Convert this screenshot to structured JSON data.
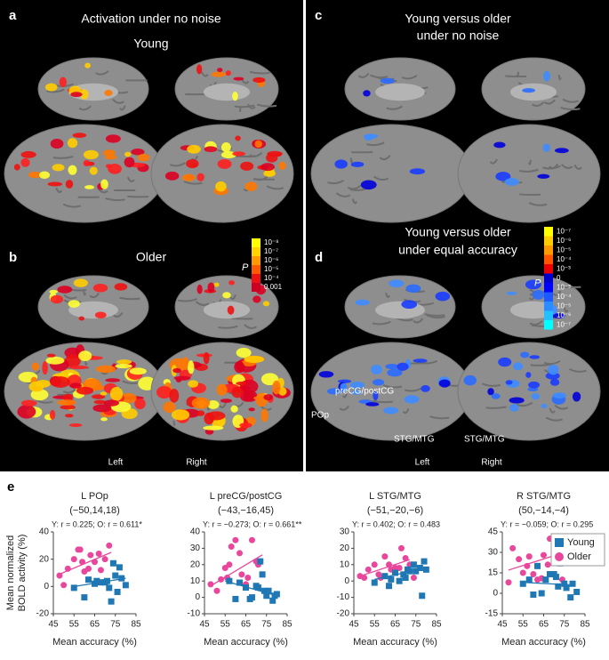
{
  "panels": [
    {
      "label": "a",
      "title": "Activation under no noise",
      "subtitle": "Young"
    },
    {
      "label": "b",
      "title": "Older",
      "colorbar": {
        "title": "P",
        "labels": [
          "10⁻⁸",
          "10⁻⁷",
          "10⁻⁶",
          "10⁻⁵",
          "10⁻⁴",
          "0.001"
        ],
        "colors": [
          "#ffff00",
          "#ffd200",
          "#ff9900",
          "#ff5a00",
          "#ee1111",
          "#cc0022"
        ]
      },
      "hemispheres": [
        "Left",
        "Right"
      ]
    },
    {
      "label": "c",
      "title": [
        "Young versus older",
        "under no noise"
      ]
    },
    {
      "label": "d",
      "title": [
        "Young versus older",
        "under equal accuracy"
      ],
      "colorbar": {
        "title": "P",
        "labels": [
          "10⁻⁷",
          "10⁻⁶",
          "10⁻⁵",
          "10⁻⁴",
          "10⁻³",
          "0",
          "10⁻³",
          "10⁻⁴",
          "10⁻⁵",
          "10⁻⁶",
          "10⁻⁷"
        ],
        "colors": [
          "#ffff00",
          "#ffcc00",
          "#ff9900",
          "#ff5500",
          "#ee0000",
          "#0000cc",
          "#0000ff",
          "#1e5aff",
          "#2a8cff",
          "#22c0ff",
          "#00ffff"
        ]
      },
      "annotations": [
        "preCG/postCG",
        "POp",
        "STG/MTG",
        "STG/MTG"
      ],
      "hemispheres": [
        "Left",
        "Right"
      ]
    },
    {
      "label": "e"
    }
  ],
  "chart_data": [
    {
      "type": "scatter",
      "title": "L POp",
      "subtitle": "(−50,14,18)",
      "stats": "Y: r = 0.225;  O: r = 0.611*",
      "xlabel": "Mean accuracy (%)",
      "ylabel": [
        "Mean normalized",
        "BOLD activity (%)"
      ],
      "xlim": [
        45,
        85
      ],
      "xticks": [
        45,
        55,
        65,
        75,
        85
      ],
      "ylim": [
        -20,
        40
      ],
      "yticks": [
        -20,
        0,
        20,
        40
      ],
      "series": [
        {
          "color": "#e8479c",
          "marker": "circle",
          "x": [
            48,
            50,
            52,
            55,
            57,
            58,
            59,
            60,
            62,
            63,
            65,
            67,
            68,
            70,
            72
          ],
          "values": [
            8,
            1,
            13,
            20,
            27,
            27,
            18,
            11,
            13,
            23,
            18,
            24,
            12,
            20,
            30
          ],
          "fit": {
            "x": [
              48,
              73
            ],
            "y": [
              9,
              25
            ]
          }
        },
        {
          "color": "#1f77b4",
          "marker": "square",
          "x": [
            55,
            60,
            62,
            65,
            66,
            68,
            70,
            71,
            72,
            73,
            74,
            75,
            76,
            77,
            78,
            80
          ],
          "values": [
            -1,
            -8,
            5,
            2,
            4,
            3,
            3,
            4,
            -1,
            -11,
            17,
            8,
            -4,
            14,
            6,
            1
          ],
          "fit": {
            "x": [
              55,
              80
            ],
            "y": [
              0,
              6
            ]
          }
        }
      ]
    },
    {
      "type": "scatter",
      "title": "L preCG/postCG",
      "subtitle": "(−43,−16,45)",
      "stats": "Y: r = −0.273;  O: r = 0.661**",
      "xlabel": "Mean accuracy (%)",
      "xlim": [
        45,
        85
      ],
      "xticks": [
        45,
        55,
        65,
        75,
        85
      ],
      "ylim": [
        -10,
        40
      ],
      "yticks": [
        -10,
        0,
        10,
        20,
        30,
        40
      ],
      "series": [
        {
          "color": "#e8479c",
          "marker": "circle",
          "x": [
            48,
            51,
            53,
            55,
            56,
            57,
            58,
            60,
            62,
            63,
            65,
            66,
            68,
            70,
            71
          ],
          "values": [
            8,
            4,
            11,
            18,
            12,
            20,
            31,
            35,
            27,
            14,
            8,
            12,
            35,
            22,
            20
          ],
          "fit": {
            "x": [
              48,
              73
            ],
            "y": [
              7,
              26
            ]
          }
        },
        {
          "color": "#1f77b4",
          "marker": "square",
          "x": [
            57,
            60,
            62,
            65,
            67,
            68,
            70,
            71,
            72,
            73,
            74,
            75,
            76,
            78,
            79,
            80
          ],
          "values": [
            10,
            -1,
            9,
            6,
            -1,
            0,
            7,
            6,
            22,
            14,
            4,
            1,
            4,
            -2,
            1,
            2
          ],
          "fit": {
            "x": [
              55,
              80
            ],
            "y": [
              10,
              1
            ]
          }
        }
      ]
    },
    {
      "type": "scatter",
      "title": "L STG/MTG",
      "subtitle": "(−51,−20,−6)",
      "stats": "Y: r = 0.402;  O: r = 0.483",
      "xlabel": "Mean accuracy (%)",
      "xlim": [
        45,
        85
      ],
      "xticks": [
        45,
        55,
        65,
        75,
        85
      ],
      "ylim": [
        -20,
        30
      ],
      "yticks": [
        -20,
        -10,
        0,
        10,
        20,
        30
      ],
      "series": [
        {
          "color": "#e8479c",
          "marker": "circle",
          "x": [
            48,
            50,
            52,
            55,
            57,
            58,
            60,
            62,
            63,
            65,
            67,
            68,
            70,
            72,
            74
          ],
          "values": [
            3,
            2,
            7,
            10,
            4,
            2,
            15,
            10,
            7,
            8,
            8,
            20,
            14,
            10,
            2
          ],
          "fit": {
            "x": [
              48,
              72
            ],
            "y": [
              3,
              13
            ]
          }
        },
        {
          "color": "#1f77b4",
          "marker": "square",
          "x": [
            55,
            60,
            62,
            63,
            65,
            67,
            69,
            70,
            71,
            72,
            74,
            75,
            77,
            78,
            79,
            80
          ],
          "values": [
            -1,
            3,
            -3,
            1,
            5,
            0,
            4,
            2,
            7,
            6,
            10,
            6,
            8,
            -9,
            12,
            7
          ],
          "fit": {
            "x": [
              55,
              80
            ],
            "y": [
              1,
              8
            ]
          }
        }
      ]
    },
    {
      "type": "scatter",
      "title": "R STG/MTG",
      "subtitle": "(50,−14,−4)",
      "stats": "Y: r = −0.059;  O: r = 0.295",
      "xlabel": "Mean accuracy (%)",
      "legend": "upper right",
      "xlim": [
        45,
        85
      ],
      "xticks": [
        45,
        55,
        65,
        75,
        85
      ],
      "ylim": [
        -15,
        45
      ],
      "yticks": [
        -15,
        0,
        15,
        30,
        45
      ],
      "series": [
        {
          "name": "Older",
          "color": "#e8479c",
          "marker": "circle",
          "x": [
            48,
            50,
            53,
            55,
            57,
            58,
            60,
            62,
            64,
            65,
            67,
            68,
            70,
            72,
            74
          ],
          "values": [
            8,
            33,
            25,
            15,
            20,
            27,
            14,
            10,
            11,
            28,
            21,
            40,
            32,
            26,
            10
          ],
          "fit": {
            "x": [
              48,
              73
            ],
            "y": [
              17,
              29
            ]
          }
        },
        {
          "name": "Young",
          "color": "#1f77b4",
          "marker": "square",
          "x": [
            55,
            58,
            60,
            62,
            64,
            66,
            68,
            70,
            71,
            72,
            73,
            75,
            76,
            78,
            79,
            81
          ],
          "values": [
            7,
            10,
            -1,
            20,
            0,
            10,
            14,
            14,
            12,
            5,
            22,
            7,
            4,
            -3,
            7,
            1
          ],
          "fit": {
            "x": [
              55,
              80
            ],
            "y": [
              8,
              6
            ]
          }
        }
      ]
    }
  ]
}
